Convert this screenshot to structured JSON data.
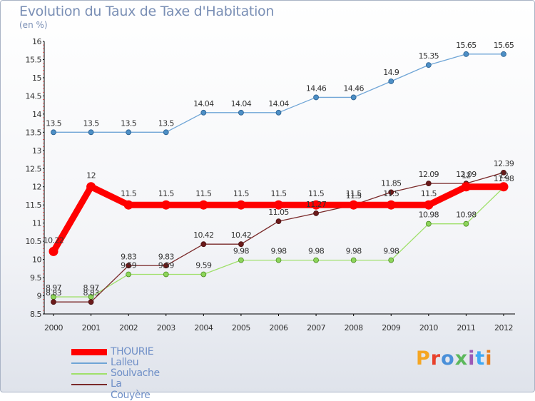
{
  "header": {
    "title": "Evolution du Taux de Taxe d'Habitation",
    "unit": "(en %)"
  },
  "logo": {
    "text": "Proxiti",
    "colors": [
      "#f5a623",
      "#e8412c",
      "#4a90d9",
      "#5cb85c",
      "#9b59b6",
      "#3fa9f5",
      "#e67e22"
    ]
  },
  "chart_data": {
    "type": "line",
    "title": "Evolution du Taux de Taxe d'Habitation",
    "ylabel": "(en %)",
    "xlabel": "",
    "x": [
      "2000",
      "2001",
      "2002",
      "2003",
      "2004",
      "2005",
      "2006",
      "2007",
      "2008",
      "2009",
      "2010",
      "2011",
      "2012"
    ],
    "ylim": [
      8.5,
      16
    ],
    "yticks": [
      "8.5",
      "9",
      "9.5",
      "10",
      "10.5",
      "11",
      "11.5",
      "12",
      "12.5",
      "13",
      "13.5",
      "14",
      "14.5",
      "15",
      "15.5",
      "16"
    ],
    "grid": false,
    "legend_position": "bottom-left",
    "series": [
      {
        "name": "THOURIE",
        "color": "#ff0000",
        "values": [
          10.22,
          12,
          11.5,
          11.5,
          11.5,
          11.5,
          11.5,
          11.5,
          11.5,
          11.5,
          11.5,
          12,
          12
        ],
        "labels": [
          "10.22",
          "12",
          "11.5",
          "11.5",
          "11.5",
          "11.5",
          "11.5",
          "11.5",
          "11.5",
          "11.5",
          "11.5",
          "12",
          "12"
        ]
      },
      {
        "name": "Lalleu",
        "color": "#6fa5d6",
        "values": [
          13.5,
          13.5,
          13.5,
          13.5,
          14.04,
          14.04,
          14.04,
          14.46,
          14.46,
          14.9,
          15.35,
          15.65,
          15.65
        ],
        "labels": [
          "13.5",
          "13.5",
          "13.5",
          "13.5",
          "14.04",
          "14.04",
          "14.04",
          "14.46",
          "14.46",
          "14.9",
          "15.35",
          "15.65",
          "15.65"
        ]
      },
      {
        "name": "Soulvache",
        "color": "#9fe06a",
        "values": [
          8.97,
          8.97,
          9.59,
          9.59,
          9.59,
          9.98,
          9.98,
          9.98,
          9.98,
          9.98,
          10.98,
          10.98,
          11.98
        ],
        "labels": [
          "8.97",
          "8.97",
          "9.59",
          "9.59",
          "9.59",
          "9.98",
          "9.98",
          "9.98",
          "9.98",
          "9.98",
          "10.98",
          "10.98",
          "11.98"
        ]
      },
      {
        "name": "La Couyère",
        "color": "#7a2a2a",
        "values": [
          8.83,
          8.83,
          9.83,
          9.83,
          10.42,
          10.42,
          11.05,
          11.27,
          11.5,
          11.85,
          12.09,
          12.09,
          12.39
        ],
        "labels": [
          "8.83",
          "8.83",
          "9.83",
          "9.83",
          "10.42",
          "10.42",
          "11.05",
          "11.27",
          "11.5",
          "11.85",
          "12.09",
          "12.09",
          "12.39"
        ]
      }
    ]
  }
}
